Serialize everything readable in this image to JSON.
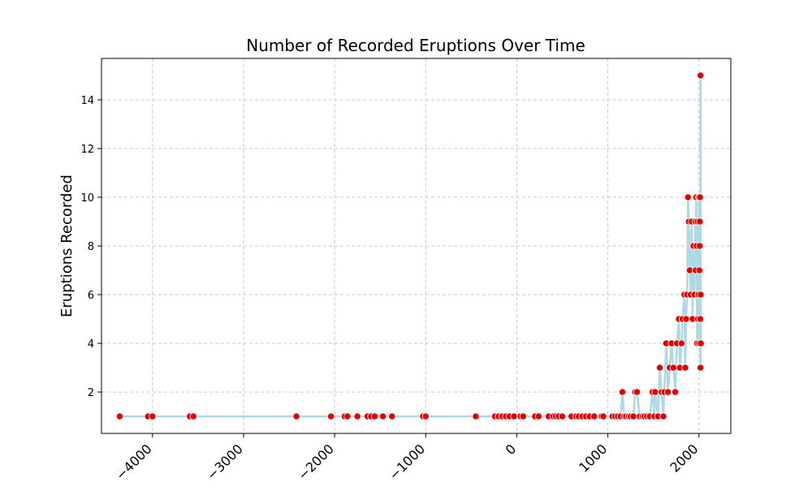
{
  "chart_data": {
    "type": "line",
    "title": "Number of Recorded Eruptions Over Time",
    "xlabel": "",
    "ylabel": "Eruptions Recorded",
    "xlim": [
      -4560,
      2350
    ],
    "ylim": [
      0.3,
      15.7
    ],
    "xticks": [
      -4000,
      -3000,
      -2000,
      -1000,
      0,
      1000,
      2000
    ],
    "xtick_labels": [
      "−4000",
      "−3000",
      "−2000",
      "−1000",
      "0",
      "1000",
      "2000"
    ],
    "yticks": [
      2,
      4,
      6,
      8,
      10,
      12,
      14
    ],
    "ytick_labels": [
      "2",
      "4",
      "6",
      "8",
      "10",
      "12",
      "14"
    ],
    "grid": true,
    "line_color": "#add8e6",
    "marker_color": "#e00000",
    "x": [
      -4360,
      -4050,
      -4000,
      -3590,
      -3550,
      -2420,
      -2040,
      -1890,
      -1860,
      -1750,
      -1640,
      -1600,
      -1560,
      -1470,
      -1370,
      -1030,
      -1000,
      -450,
      -240,
      -200,
      -160,
      -120,
      -80,
      -30,
      40,
      70,
      200,
      240,
      350,
      400,
      430,
      460,
      500,
      600,
      650,
      680,
      720,
      760,
      800,
      850,
      930,
      950,
      1050,
      1080,
      1110,
      1140,
      1160,
      1180,
      1200,
      1230,
      1250,
      1280,
      1300,
      1320,
      1350,
      1380,
      1400,
      1430,
      1460,
      1490,
      1510,
      1520,
      1550,
      1570,
      1590,
      1610,
      1620,
      1640,
      1660,
      1680,
      1700,
      1720,
      1740,
      1760,
      1780,
      1790,
      1810,
      1820,
      1840,
      1850,
      1860,
      1870,
      1880,
      1890,
      1900,
      1910,
      1920,
      1930,
      1940,
      1950,
      1960,
      1965,
      1970,
      1975,
      1980,
      1985,
      1990,
      1995,
      2000,
      2002,
      2005,
      2008,
      2010,
      2012,
      2015,
      2017,
      2018,
      2020,
      2022
    ],
    "y": [
      1,
      1,
      1,
      1,
      1,
      1,
      1,
      1,
      1,
      1,
      1,
      1,
      1,
      1,
      1,
      1,
      1,
      1,
      1,
      1,
      1,
      1,
      1,
      1,
      1,
      1,
      1,
      1,
      1,
      1,
      1,
      1,
      1,
      1,
      1,
      1,
      1,
      1,
      1,
      1,
      1,
      1,
      1,
      1,
      1,
      1,
      2,
      1,
      1,
      1,
      1,
      1,
      2,
      2,
      1,
      1,
      1,
      1,
      1,
      2,
      1,
      2,
      1,
      3,
      2,
      1,
      2,
      4,
      2,
      3,
      4,
      3,
      2,
      4,
      5,
      3,
      4,
      5,
      6,
      3,
      5,
      6,
      10,
      9,
      7,
      6,
      9,
      5,
      8,
      6,
      9,
      7,
      10,
      8,
      4,
      9,
      5,
      6,
      10,
      4,
      7,
      8,
      9,
      10,
      5,
      3,
      15,
      6,
      4
    ]
  }
}
